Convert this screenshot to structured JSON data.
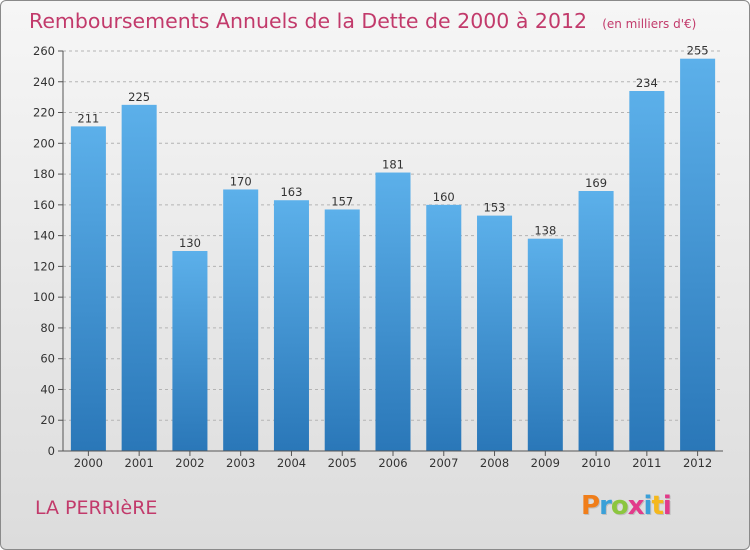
{
  "header": {
    "title": "Remboursements Annuels de la Dette de 2000 à 2012",
    "unit": "(en milliers d'€)"
  },
  "footer": {
    "commune": "LA PERRIèRE",
    "logo_text": "Proxiti",
    "logo_colors": [
      "#f07e1a",
      "#3aa0d8",
      "#8cc63f",
      "#e23b8a",
      "#3aa0d8",
      "#f5b81c",
      "#e23b8a"
    ]
  },
  "colors": {
    "accent": "#c23a6b",
    "bar_top": "#5cb0ea",
    "bar_bottom": "#2a77b8"
  },
  "chart_data": {
    "type": "bar",
    "title": "Remboursements Annuels de la Dette de 2000 à 2012",
    "subtitle": "(en milliers d'€)",
    "xlabel": "",
    "ylabel": "",
    "categories": [
      "2000",
      "2001",
      "2002",
      "2003",
      "2004",
      "2005",
      "2006",
      "2007",
      "2008",
      "2009",
      "2010",
      "2011",
      "2012"
    ],
    "values": [
      211,
      225,
      130,
      170,
      163,
      157,
      181,
      160,
      153,
      138,
      169,
      234,
      255
    ],
    "ylim": [
      0,
      260
    ],
    "yticks": [
      0,
      20,
      40,
      60,
      80,
      100,
      120,
      140,
      160,
      180,
      200,
      220,
      240,
      260
    ],
    "grid": true,
    "data_labels": true
  }
}
